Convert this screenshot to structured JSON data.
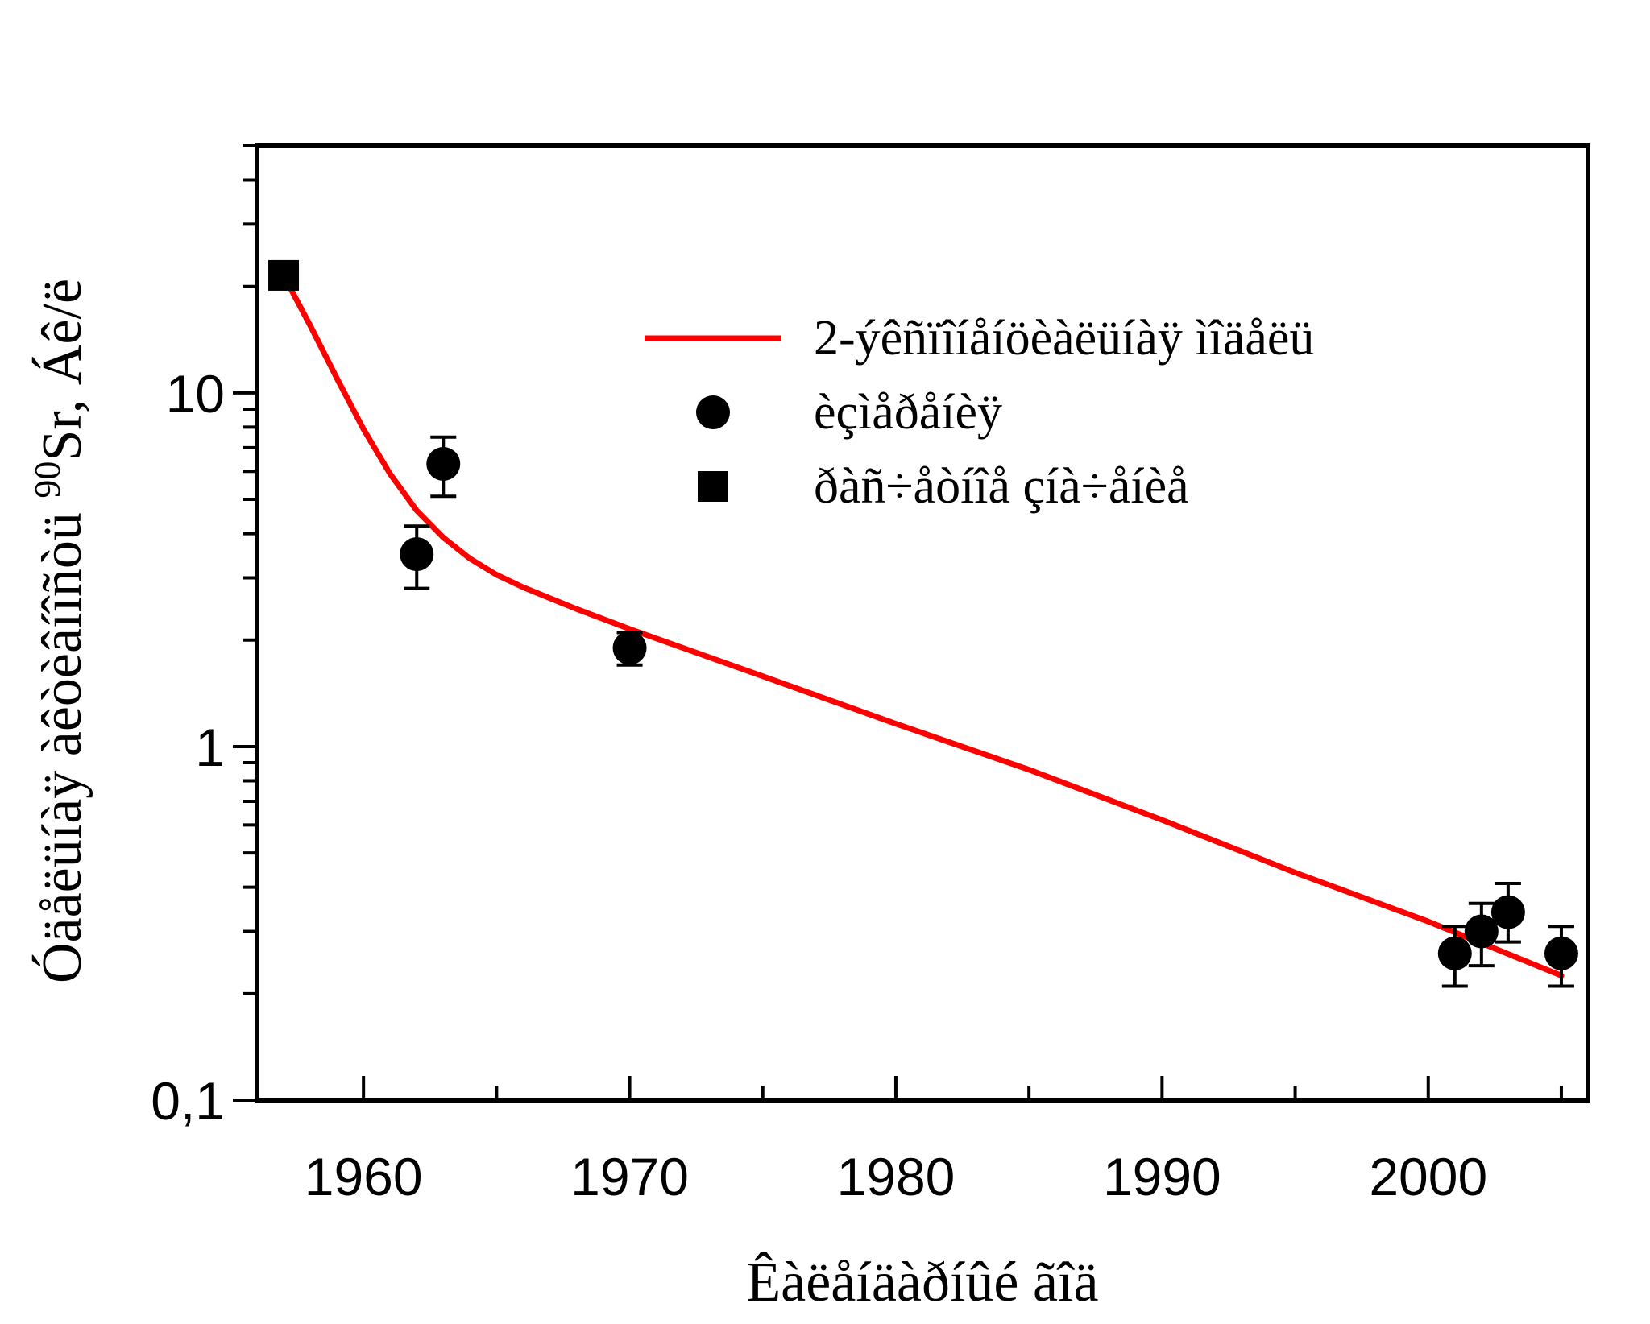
{
  "chart_data": {
    "type": "scatter",
    "xlabel": "Êàëåíäàðíûé ãîä",
    "ylabel_prefix": "Óäåëüíàÿ àêòèâíîñòü ",
    "ylabel_sup": "90",
    "ylabel_suffix": "Sr, Áê/ë",
    "x_ticks": [
      "1960",
      "1970",
      "1980",
      "1990",
      "2000"
    ],
    "y_ticks": [
      "0,1",
      "1",
      "10"
    ],
    "xlim": [
      1956,
      2006
    ],
    "ylim": [
      0.1,
      50
    ],
    "log_y": true,
    "legend_position": "top-right",
    "colors": {
      "model": "#ff0000",
      "points": "#000000"
    },
    "series": [
      {
        "name": "2-ýêñïîíåíöèàëüíàÿ ìîäåëü",
        "kind": "line",
        "x": [
          1957,
          1958,
          1959,
          1960,
          1961,
          1962,
          1963,
          1964,
          1965,
          1966,
          1968,
          1970,
          1975,
          1980,
          1985,
          1990,
          1995,
          2000,
          2005
        ],
        "y": [
          21.5,
          15.5,
          11.0,
          7.9,
          5.9,
          4.65,
          3.9,
          3.4,
          3.06,
          2.82,
          2.45,
          2.15,
          1.58,
          1.16,
          0.86,
          0.62,
          0.44,
          0.32,
          0.225
        ]
      },
      {
        "name": "èçìåðåíèÿ",
        "kind": "points",
        "marker": "circle",
        "x": [
          1962,
          1963,
          1970,
          2001,
          2002,
          2003,
          2005
        ],
        "y": [
          3.5,
          6.3,
          1.9,
          0.26,
          0.3,
          0.34,
          0.26
        ],
        "err_low": [
          0.7,
          1.2,
          0.2,
          0.05,
          0.06,
          0.06,
          0.05
        ],
        "err_high": [
          0.7,
          1.2,
          0.2,
          0.05,
          0.06,
          0.07,
          0.05
        ]
      },
      {
        "name": "ðàñ÷åòíîå çíà÷åíèå",
        "kind": "points",
        "marker": "square",
        "x": [
          1957
        ],
        "y": [
          21.5
        ]
      }
    ]
  }
}
